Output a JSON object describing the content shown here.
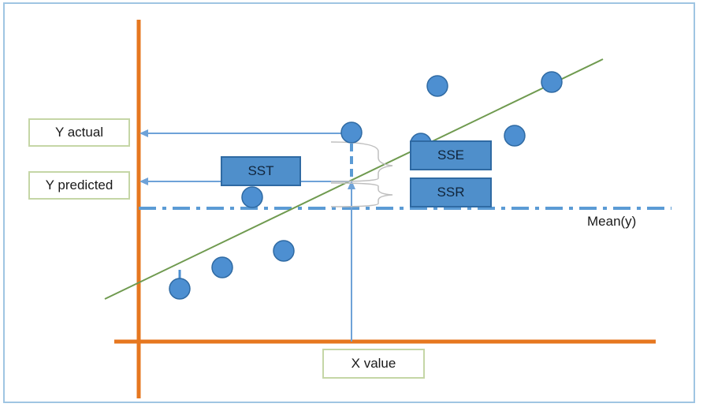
{
  "labels": {
    "y_actual": "Y actual",
    "y_predicted": "Y predicted",
    "x_value": "X value",
    "mean_y": "Mean(y)",
    "sst": "SST",
    "sse": "SSE",
    "ssr": "SSR"
  },
  "colors": {
    "axis": "#e6771f",
    "regression_line": "#6f9a4f",
    "points": "#4d8fd1",
    "guides": "#6ea2d8",
    "mean_line": "#5b9bd5",
    "sum_box_fill": "#4f8fcb",
    "label_box_border": "#c5d6a6"
  },
  "icons": {
    "sse_brace": "right-curly-brace-icon",
    "ssr_brace": "right-curly-brace-icon"
  }
}
